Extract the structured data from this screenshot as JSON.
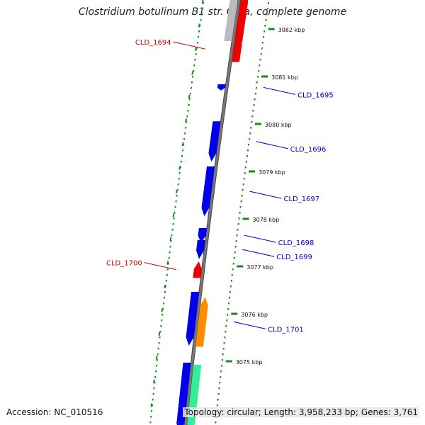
{
  "title": "Clostridium botulinum B1 str. Okra, complete genome",
  "footer": {
    "accession": "Accession: NC_010516",
    "summary": "Topology: circular; Length: 3,958,233 bp; Genes: 3,761"
  },
  "colors": {
    "forward_gene": "#0000ee",
    "reverse_gene": "#ee0000",
    "highlight_gene": "#ff8c00",
    "rna_gene": "#33ee99",
    "other_gene": "#bbbbbb",
    "backbone": "#777777",
    "tick": "#1a8a1a",
    "label_forward": "#0000cc",
    "label_reverse": "#cc0000"
  },
  "kbp_ticks": [
    {
      "pos": 3075,
      "label": "3075 kbp"
    },
    {
      "pos": 3076,
      "label": "3076 kbp"
    },
    {
      "pos": 3077,
      "label": "3077 kbp"
    },
    {
      "pos": 3078,
      "label": "3078 kbp"
    },
    {
      "pos": 3079,
      "label": "3079 kbp"
    },
    {
      "pos": 3080,
      "label": "3080 kbp"
    },
    {
      "pos": 3081,
      "label": "3081 kbp"
    },
    {
      "pos": 3082,
      "label": "3082 kbp"
    }
  ],
  "genes": [
    {
      "label": "CLD_1694",
      "strand": "reverse",
      "start": 3081.35,
      "end": 3081.9,
      "color": "reverse_gene"
    },
    {
      "label": "CLD_1695",
      "strand": "forward",
      "start": 3080.75,
      "end": 3080.88,
      "color": "forward_gene"
    },
    {
      "label": "CLD_1696",
      "strand": "forward",
      "start": 3079.25,
      "end": 3080.1,
      "color": "forward_gene"
    },
    {
      "label": "CLD_1697",
      "strand": "forward",
      "start": 3078.1,
      "end": 3079.15,
      "color": "forward_gene"
    },
    {
      "label": "CLD_1698",
      "strand": "forward",
      "start": 3077.55,
      "end": 3077.85,
      "color": "forward_gene"
    },
    {
      "label": "CLD_1699",
      "strand": "forward",
      "start": 3077.2,
      "end": 3077.6,
      "color": "forward_gene"
    },
    {
      "label": "CLD_1700",
      "strand": "reverse",
      "start": 3076.8,
      "end": 3077.15,
      "color": "reverse_gene"
    },
    {
      "label": "CLD_1701",
      "strand": "reverse",
      "start": 3075.35,
      "end": 3076.4,
      "color": "highlight_gene"
    }
  ]
}
